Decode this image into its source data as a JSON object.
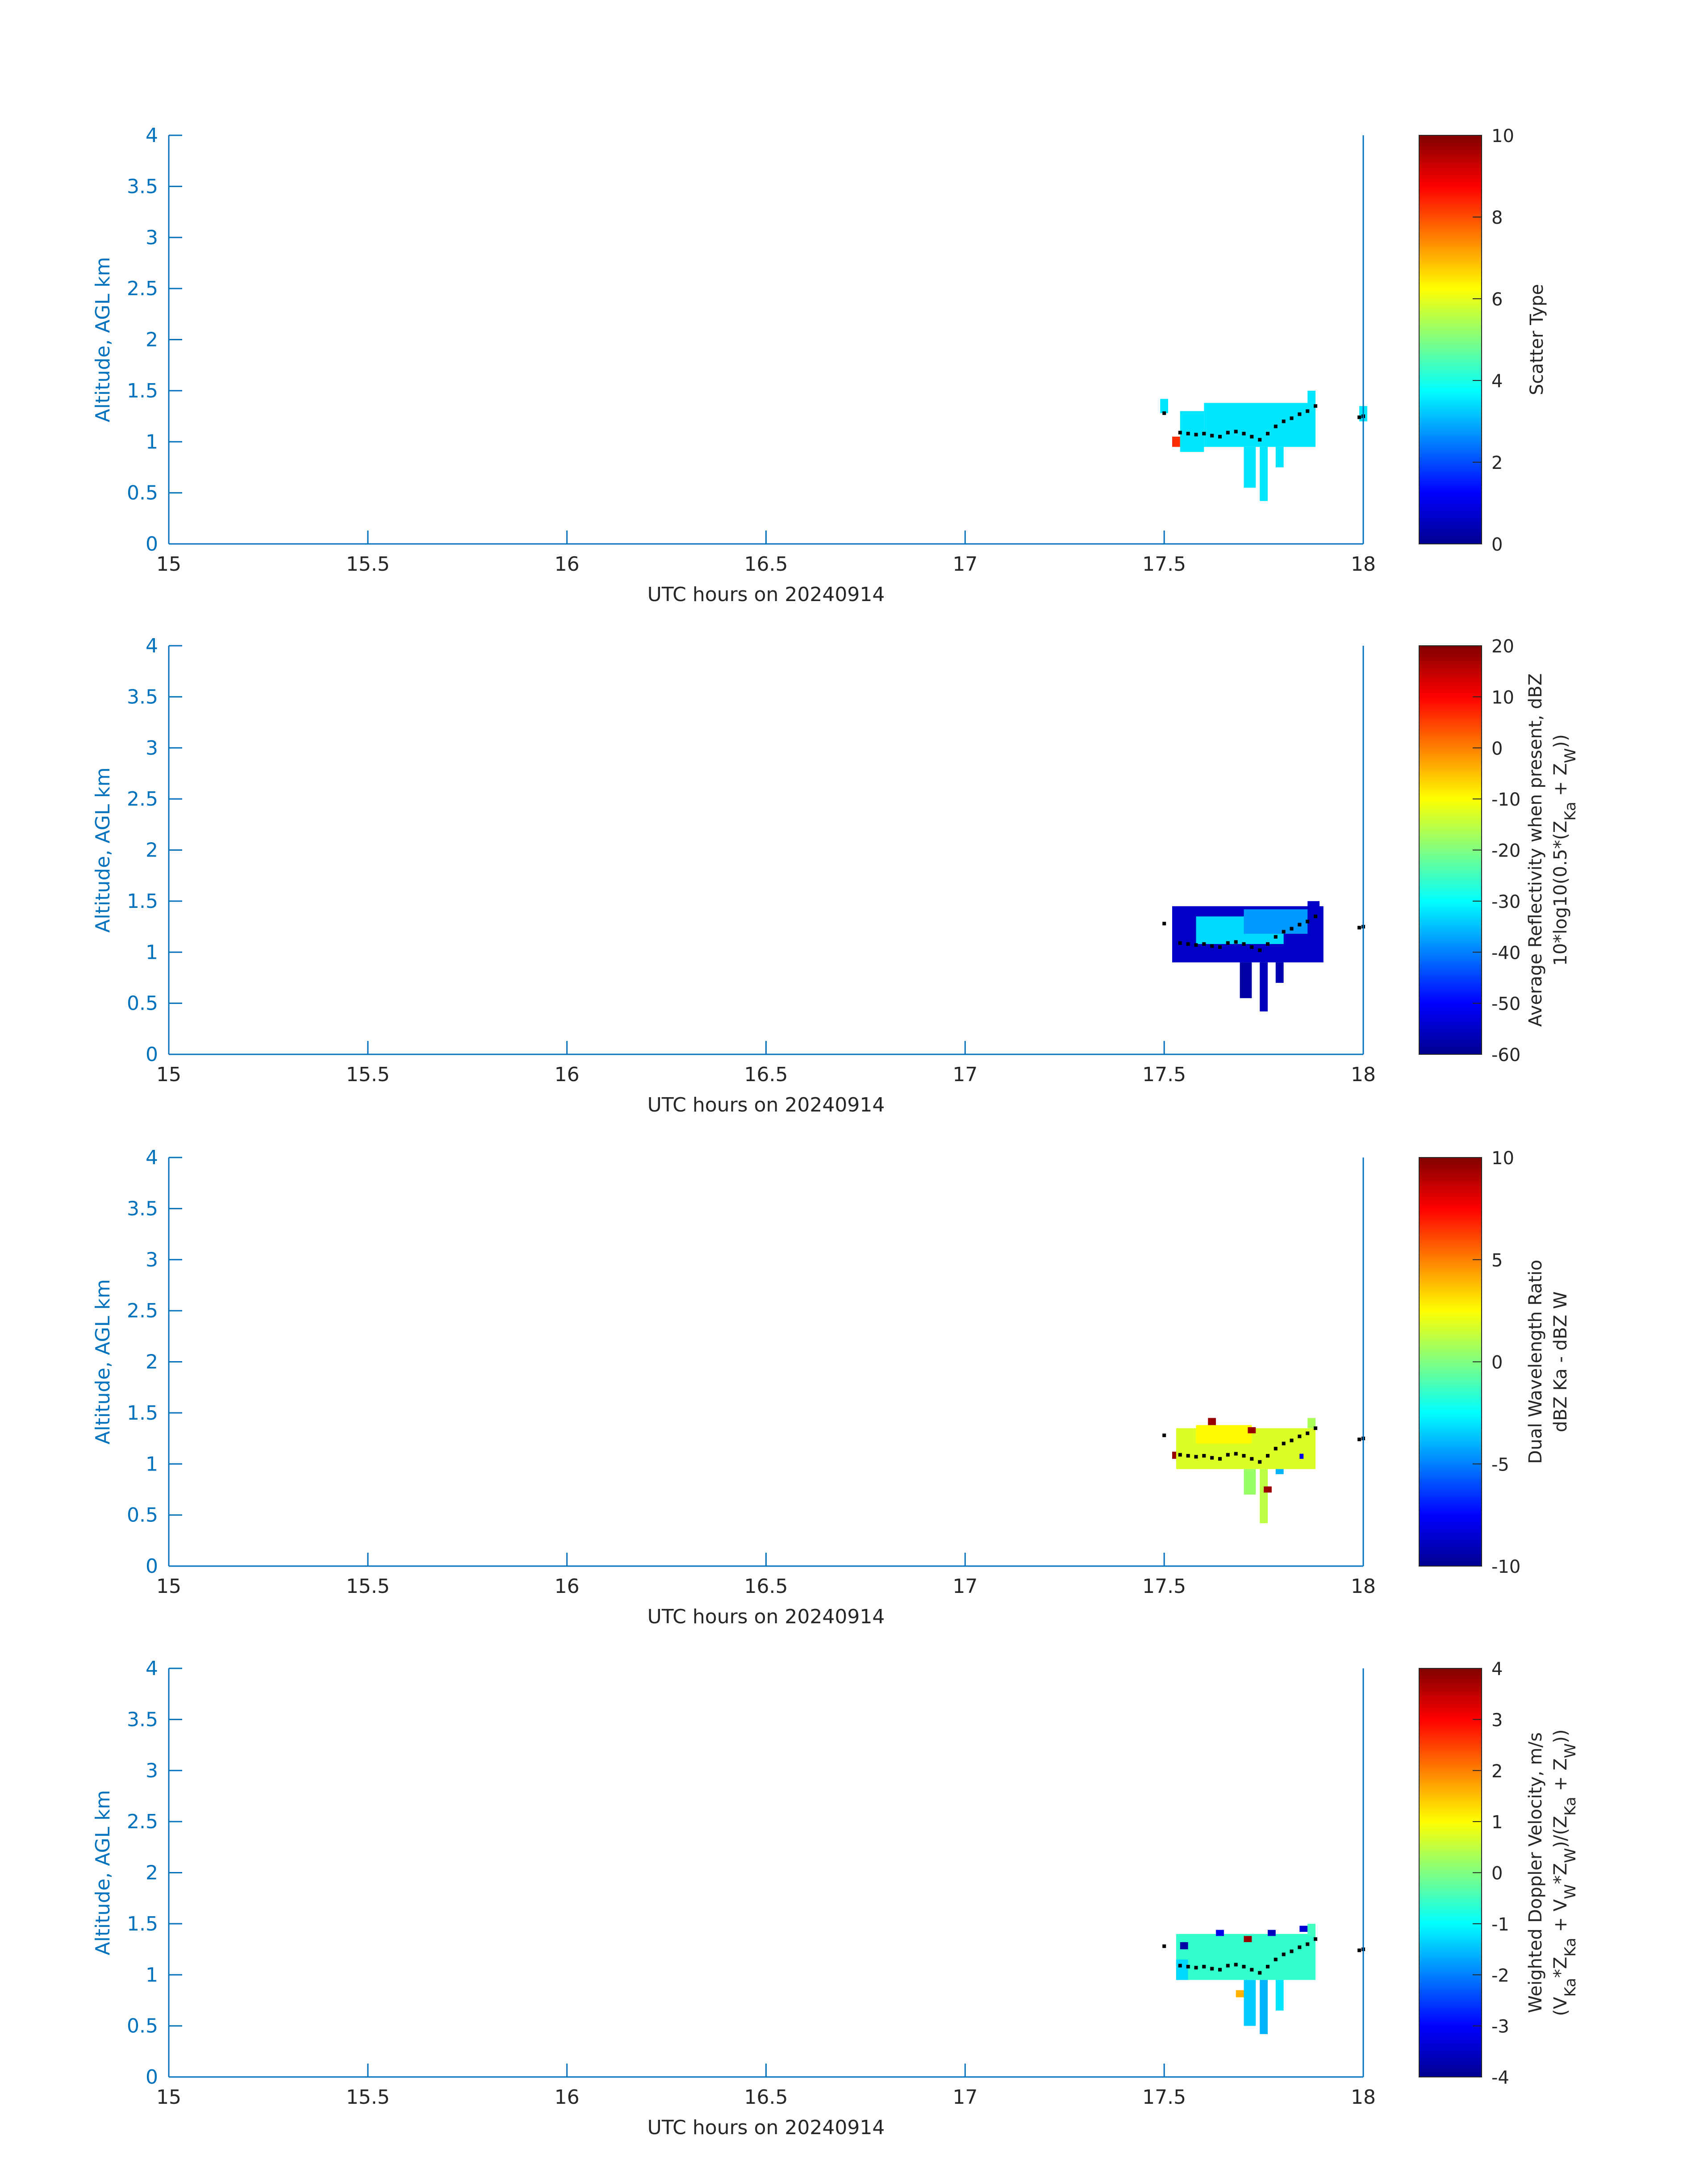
{
  "figure": {
    "axis_color": "#0072bd",
    "text_color": "#262626",
    "colormap": [
      "#00008f",
      "#0000ff",
      "#0080ff",
      "#00ffff",
      "#80ff80",
      "#ffff00",
      "#ff8000",
      "#ff0000",
      "#800000"
    ]
  },
  "chart_data": [
    {
      "type": "heatmap",
      "title": "",
      "xlabel": "UTC hours on 20240914",
      "ylabel": "Altitude, AGL km",
      "xlim": [
        15,
        18
      ],
      "ylim": [
        0,
        4
      ],
      "xticks": [
        "15",
        "15.5",
        "16",
        "16.5",
        "17",
        "17.5",
        "18"
      ],
      "yticks": [
        "0",
        "0.5",
        "1",
        "1.5",
        "2",
        "2.5",
        "3",
        "3.5",
        "4"
      ],
      "grid": false,
      "colorbar": {
        "label_lines": [
          "Scatter Type"
        ],
        "limits": [
          0,
          10
        ],
        "ticks": [
          "0",
          "2",
          "4",
          "6",
          "8",
          "10"
        ]
      },
      "cells": [
        {
          "x0": 17.49,
          "x1": 17.51,
          "y0": 1.28,
          "y1": 1.42,
          "value": 3.5
        },
        {
          "x0": 17.52,
          "x1": 17.54,
          "y0": 0.95,
          "y1": 1.05,
          "value": 8.3
        },
        {
          "x0": 17.54,
          "x1": 17.6,
          "y0": 0.9,
          "y1": 1.3,
          "value": 3.5
        },
        {
          "x0": 17.6,
          "x1": 17.88,
          "y0": 0.95,
          "y1": 1.38,
          "value": 3.5
        },
        {
          "x0": 17.86,
          "x1": 17.88,
          "y0": 1.38,
          "y1": 1.5,
          "value": 3.5
        },
        {
          "x0": 17.7,
          "x1": 17.73,
          "y0": 0.55,
          "y1": 0.95,
          "value": 3.5
        },
        {
          "x0": 17.74,
          "x1": 17.76,
          "y0": 0.42,
          "y1": 0.95,
          "value": 3.5
        },
        {
          "x0": 17.78,
          "x1": 17.8,
          "y0": 0.75,
          "y1": 0.95,
          "value": 3.5
        },
        {
          "x0": 17.99,
          "x1": 18.01,
          "y0": 1.2,
          "y1": 1.35,
          "value": 3.5
        }
      ],
      "track": [
        [
          17.5,
          1.28
        ],
        [
          17.54,
          1.09
        ],
        [
          17.56,
          1.08
        ],
        [
          17.58,
          1.07
        ],
        [
          17.6,
          1.08
        ],
        [
          17.62,
          1.06
        ],
        [
          17.64,
          1.05
        ],
        [
          17.66,
          1.09
        ],
        [
          17.68,
          1.1
        ],
        [
          17.7,
          1.08
        ],
        [
          17.72,
          1.05
        ],
        [
          17.74,
          1.02
        ],
        [
          17.76,
          1.08
        ],
        [
          17.78,
          1.15
        ],
        [
          17.8,
          1.2
        ],
        [
          17.82,
          1.23
        ],
        [
          17.84,
          1.27
        ],
        [
          17.86,
          1.3
        ],
        [
          17.88,
          1.35
        ],
        [
          17.99,
          1.24
        ],
        [
          18.0,
          1.25
        ]
      ]
    },
    {
      "type": "heatmap",
      "title": "",
      "xlabel": "UTC hours on 20240914",
      "ylabel": "Altitude, AGL km",
      "xlim": [
        15,
        18
      ],
      "ylim": [
        0,
        4
      ],
      "xticks": [
        "15",
        "15.5",
        "16",
        "16.5",
        "17",
        "17.5",
        "18"
      ],
      "yticks": [
        "0",
        "0.5",
        "1",
        "1.5",
        "2",
        "2.5",
        "3",
        "3.5",
        "4"
      ],
      "grid": false,
      "colorbar": {
        "label_lines": [
          "Average Reflectivity when present, dBZ",
          "10*log10(0.5*(Z_Ka + Z_W))"
        ],
        "limits": [
          -60,
          20
        ],
        "ticks": [
          "-60",
          "-50",
          "-40",
          "-30",
          "-20",
          "-10",
          "0",
          "10",
          "20"
        ]
      },
      "cells": [
        {
          "x0": 17.52,
          "x1": 17.9,
          "y0": 0.9,
          "y1": 1.45,
          "value": -55
        },
        {
          "x0": 17.86,
          "x1": 17.89,
          "y0": 1.4,
          "y1": 1.5,
          "value": -55
        },
        {
          "x0": 17.58,
          "x1": 17.8,
          "y0": 1.08,
          "y1": 1.35,
          "value": -33
        },
        {
          "x0": 17.7,
          "x1": 17.86,
          "y0": 1.18,
          "y1": 1.42,
          "value": -38
        },
        {
          "x0": 17.69,
          "x1": 17.72,
          "y0": 0.55,
          "y1": 0.9,
          "value": -58
        },
        {
          "x0": 17.74,
          "x1": 17.76,
          "y0": 0.42,
          "y1": 0.9,
          "value": -56
        },
        {
          "x0": 17.78,
          "x1": 17.8,
          "y0": 0.7,
          "y1": 0.9,
          "value": -57
        }
      ],
      "track": [
        [
          17.5,
          1.28
        ],
        [
          17.54,
          1.09
        ],
        [
          17.56,
          1.08
        ],
        [
          17.58,
          1.07
        ],
        [
          17.6,
          1.08
        ],
        [
          17.62,
          1.06
        ],
        [
          17.64,
          1.05
        ],
        [
          17.66,
          1.09
        ],
        [
          17.68,
          1.1
        ],
        [
          17.7,
          1.08
        ],
        [
          17.72,
          1.05
        ],
        [
          17.74,
          1.02
        ],
        [
          17.76,
          1.08
        ],
        [
          17.78,
          1.15
        ],
        [
          17.8,
          1.2
        ],
        [
          17.82,
          1.23
        ],
        [
          17.84,
          1.27
        ],
        [
          17.86,
          1.3
        ],
        [
          17.88,
          1.35
        ],
        [
          17.99,
          1.24
        ],
        [
          18.0,
          1.25
        ]
      ]
    },
    {
      "type": "heatmap",
      "title": "",
      "xlabel": "UTC hours on 20240914",
      "ylabel": "Altitude, AGL km",
      "xlim": [
        15,
        18
      ],
      "ylim": [
        0,
        4
      ],
      "xticks": [
        "15",
        "15.5",
        "16",
        "16.5",
        "17",
        "17.5",
        "18"
      ],
      "yticks": [
        "0",
        "0.5",
        "1",
        "1.5",
        "2",
        "2.5",
        "3",
        "3.5",
        "4"
      ],
      "grid": false,
      "colorbar": {
        "label_lines": [
          "Dual Wavelength Ratio",
          "dBZ Ka - dBZ W"
        ],
        "limits": [
          -10,
          10
        ],
        "ticks": [
          "-10",
          "-5",
          "0",
          "5",
          "10"
        ]
      },
      "cells": [
        {
          "x0": 17.53,
          "x1": 17.88,
          "y0": 0.95,
          "y1": 1.35,
          "value": 1.8
        },
        {
          "x0": 17.58,
          "x1": 17.72,
          "y0": 1.2,
          "y1": 1.38,
          "value": 2.6
        },
        {
          "x0": 17.86,
          "x1": 17.88,
          "y0": 1.35,
          "y1": 1.45,
          "value": 0.8
        },
        {
          "x0": 17.7,
          "x1": 17.73,
          "y0": 0.7,
          "y1": 0.95,
          "value": 0.5
        },
        {
          "x0": 17.74,
          "x1": 17.76,
          "y0": 0.42,
          "y1": 0.95,
          "value": 1.2
        },
        {
          "x0": 17.52,
          "x1": 17.53,
          "y0": 1.05,
          "y1": 1.12,
          "value": 9.5
        },
        {
          "x0": 17.61,
          "x1": 17.63,
          "y0": 1.38,
          "y1": 1.45,
          "value": 9.5
        },
        {
          "x0": 17.71,
          "x1": 17.73,
          "y0": 1.3,
          "y1": 1.36,
          "value": 9.5
        },
        {
          "x0": 17.75,
          "x1": 17.77,
          "y0": 0.72,
          "y1": 0.78,
          "value": 9.5
        },
        {
          "x0": 17.84,
          "x1": 17.85,
          "y0": 1.05,
          "y1": 1.1,
          "value": -8
        },
        {
          "x0": 17.78,
          "x1": 17.8,
          "y0": 0.9,
          "y1": 0.95,
          "value": -4
        }
      ],
      "track": [
        [
          17.5,
          1.28
        ],
        [
          17.54,
          1.09
        ],
        [
          17.56,
          1.08
        ],
        [
          17.58,
          1.07
        ],
        [
          17.6,
          1.08
        ],
        [
          17.62,
          1.06
        ],
        [
          17.64,
          1.05
        ],
        [
          17.66,
          1.09
        ],
        [
          17.68,
          1.1
        ],
        [
          17.7,
          1.08
        ],
        [
          17.72,
          1.05
        ],
        [
          17.74,
          1.02
        ],
        [
          17.76,
          1.08
        ],
        [
          17.78,
          1.15
        ],
        [
          17.8,
          1.2
        ],
        [
          17.82,
          1.23
        ],
        [
          17.84,
          1.27
        ],
        [
          17.86,
          1.3
        ],
        [
          17.88,
          1.35
        ],
        [
          17.99,
          1.24
        ],
        [
          18.0,
          1.25
        ]
      ]
    },
    {
      "type": "heatmap",
      "title": "",
      "xlabel": "UTC hours on 20240914",
      "ylabel": "Altitude, AGL km",
      "xlim": [
        15,
        18
      ],
      "ylim": [
        0,
        4
      ],
      "xticks": [
        "15",
        "15.5",
        "16",
        "16.5",
        "17",
        "17.5",
        "18"
      ],
      "yticks": [
        "0",
        "0.5",
        "1",
        "1.5",
        "2",
        "2.5",
        "3",
        "3.5",
        "4"
      ],
      "grid": false,
      "colorbar": {
        "label_lines": [
          "Weighted Doppler Velocity, m/s",
          "(V_Ka*Z_Ka + V_W*Z_W)/(Z_Ka + Z_W))"
        ],
        "limits": [
          -4,
          4
        ],
        "ticks": [
          "-4",
          "-3",
          "-2",
          "-1",
          "0",
          "1",
          "2",
          "3",
          "4"
        ]
      },
      "cells": [
        {
          "x0": 17.53,
          "x1": 17.88,
          "y0": 0.95,
          "y1": 1.4,
          "value": -0.6
        },
        {
          "x0": 17.86,
          "x1": 17.88,
          "y0": 1.38,
          "y1": 1.5,
          "value": -0.5
        },
        {
          "x0": 17.53,
          "x1": 17.56,
          "y0": 0.95,
          "y1": 1.15,
          "value": -1.3
        },
        {
          "x0": 17.7,
          "x1": 17.73,
          "y0": 0.5,
          "y1": 0.95,
          "value": -1.4
        },
        {
          "x0": 17.74,
          "x1": 17.76,
          "y0": 0.42,
          "y1": 0.95,
          "value": -1.6
        },
        {
          "x0": 17.78,
          "x1": 17.8,
          "y0": 0.65,
          "y1": 0.95,
          "value": -1.2
        },
        {
          "x0": 17.68,
          "x1": 17.7,
          "y0": 0.78,
          "y1": 0.85,
          "value": 1.6
        },
        {
          "x0": 17.54,
          "x1": 17.56,
          "y0": 1.25,
          "y1": 1.32,
          "value": -3.8
        },
        {
          "x0": 17.63,
          "x1": 17.65,
          "y0": 1.38,
          "y1": 1.44,
          "value": -3.2
        },
        {
          "x0": 17.7,
          "x1": 17.72,
          "y0": 1.32,
          "y1": 1.38,
          "value": 3.8
        },
        {
          "x0": 17.76,
          "x1": 17.78,
          "y0": 1.38,
          "y1": 1.44,
          "value": -3.6
        },
        {
          "x0": 17.84,
          "x1": 17.86,
          "y0": 1.42,
          "y1": 1.48,
          "value": -3.4
        }
      ],
      "track": [
        [
          17.5,
          1.28
        ],
        [
          17.54,
          1.09
        ],
        [
          17.56,
          1.08
        ],
        [
          17.58,
          1.07
        ],
        [
          17.6,
          1.08
        ],
        [
          17.62,
          1.06
        ],
        [
          17.64,
          1.05
        ],
        [
          17.66,
          1.09
        ],
        [
          17.68,
          1.1
        ],
        [
          17.7,
          1.08
        ],
        [
          17.72,
          1.05
        ],
        [
          17.74,
          1.02
        ],
        [
          17.76,
          1.08
        ],
        [
          17.78,
          1.15
        ],
        [
          17.8,
          1.2
        ],
        [
          17.82,
          1.23
        ],
        [
          17.84,
          1.27
        ],
        [
          17.86,
          1.3
        ],
        [
          17.88,
          1.35
        ],
        [
          17.99,
          1.24
        ],
        [
          18.0,
          1.25
        ]
      ]
    }
  ]
}
